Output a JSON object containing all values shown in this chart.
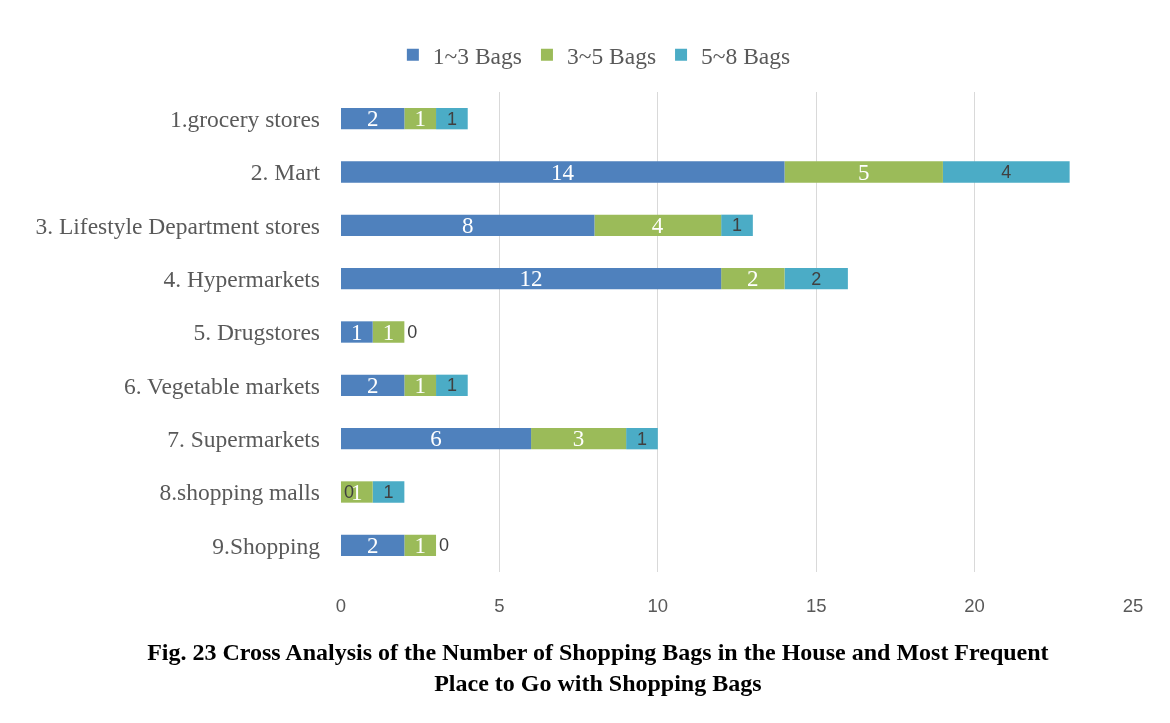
{
  "chart_data": {
    "type": "bar",
    "orientation": "horizontal",
    "stacked": true,
    "title": "Fig. 23 Cross Analysis of the Number of Shopping Bags in the House and Most Frequent Place to Go with Shopping Bags",
    "categories": [
      "1.grocery stores",
      "2. Mart",
      "3. Lifestyle Department stores",
      "4. Hypermarkets",
      "5. Drugstores",
      "6. Vegetable markets",
      "7. Supermarkets",
      "8.shopping malls",
      "9.Shopping"
    ],
    "series": [
      {
        "name": "1~3 Bags",
        "color": "#4f81bd",
        "values": [
          2,
          14,
          8,
          12,
          1,
          2,
          6,
          0,
          2
        ]
      },
      {
        "name": "3~5 Bags",
        "color": "#9bbb59",
        "values": [
          1,
          5,
          4,
          2,
          1,
          1,
          3,
          1,
          1
        ]
      },
      {
        "name": "5~8 Bags",
        "color": "#4bacc6",
        "values": [
          1,
          4,
          1,
          2,
          0,
          1,
          1,
          1,
          0
        ]
      }
    ],
    "xlim": [
      0,
      25
    ],
    "xticks": [
      0,
      5,
      10,
      15,
      20,
      25
    ],
    "grid": "x",
    "legend": "top",
    "data_labels": true
  }
}
